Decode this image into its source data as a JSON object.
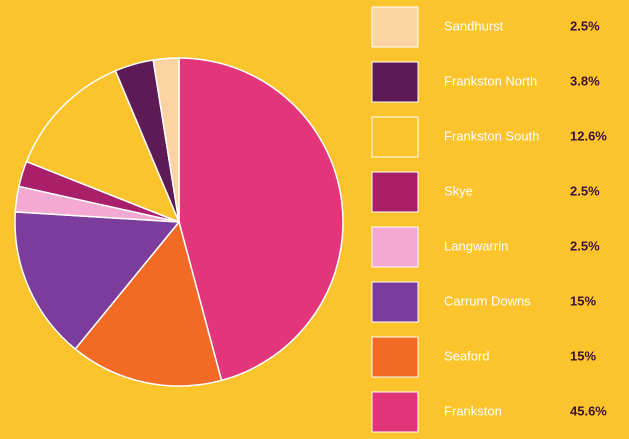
{
  "chart_data": {
    "type": "pie",
    "categories": [
      "Sandhurst",
      "Frankston North",
      "Frankston South",
      "Skye",
      "Langwarrin",
      "Carrum Downs",
      "Seaford",
      "Frankston"
    ],
    "values": [
      2.5,
      3.8,
      12.6,
      2.5,
      2.5,
      15,
      15,
      45.6
    ],
    "value_labels": [
      "2.5%",
      "3.8%",
      "12.6%",
      "2.5%",
      "2.5%",
      "15%",
      "15%",
      "45.6%"
    ],
    "colors": [
      "#fdd3a3",
      "#5e1a55",
      "#fcc42c",
      "#a91f69",
      "#f3a9d1",
      "#7b3c9b",
      "#f26a24",
      "#e2357a"
    ]
  }
}
